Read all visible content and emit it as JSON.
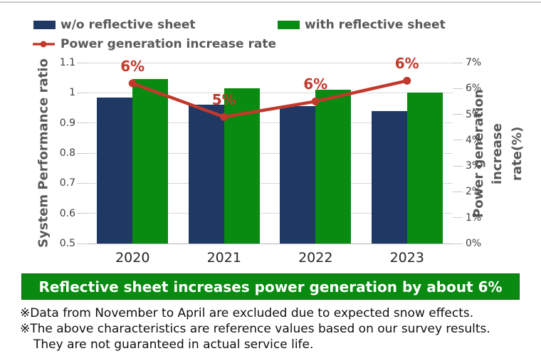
{
  "legend": {
    "items": [
      {
        "label": "w/o reflective sheet",
        "color": "#1f3864",
        "type": "swatch"
      },
      {
        "label": "with reflective sheet",
        "color": "#098a10",
        "type": "swatch"
      },
      {
        "label": "Power generation increase rate",
        "color": "#c2392c",
        "type": "line"
      }
    ]
  },
  "chart_data": {
    "type": "combo-bar-line",
    "categories": [
      "2020",
      "2021",
      "2022",
      "2023"
    ],
    "series": [
      {
        "name": "w/o reflective sheet",
        "type": "bar",
        "axis": "left",
        "color": "#1f3864",
        "values": [
          0.985,
          0.96,
          0.955,
          0.94
        ]
      },
      {
        "name": "with reflective sheet",
        "type": "bar",
        "axis": "left",
        "color": "#098a10",
        "values": [
          1.045,
          1.015,
          1.01,
          1.0
        ]
      },
      {
        "name": "Power generation increase rate",
        "type": "line",
        "axis": "right",
        "color": "#c2392c",
        "values": [
          6.2,
          4.9,
          5.5,
          6.3
        ],
        "point_labels": [
          "6%",
          "5%",
          "6%",
          "6%"
        ]
      }
    ],
    "left_axis": {
      "title": "System Performance ratio",
      "min": 0.5,
      "max": 1.1,
      "ticks": [
        "1.1",
        "1",
        "0.9",
        "0.8",
        "0.7",
        "0.6",
        "0.5"
      ]
    },
    "right_axis": {
      "title": "Power generation increase rate(%)",
      "title_lines": [
        "Power generation increase",
        "rate(%)"
      ],
      "min": 0,
      "max": 7,
      "ticks": [
        "7%",
        "6%",
        "5%",
        "4%",
        "3%",
        "2%",
        "1%",
        "0%"
      ]
    },
    "grid": true,
    "legend_position": "top-left"
  },
  "banner": {
    "text": "Reflective sheet increases power generation by about 6%",
    "bg_color": "#098a10",
    "text_color": "#ffffff"
  },
  "footnotes": [
    "※Data from November to April are excluded due to expected snow effects.",
    "※The above characteristics are reference values based on our survey results.",
    "They are not guaranteed in actual service life."
  ]
}
